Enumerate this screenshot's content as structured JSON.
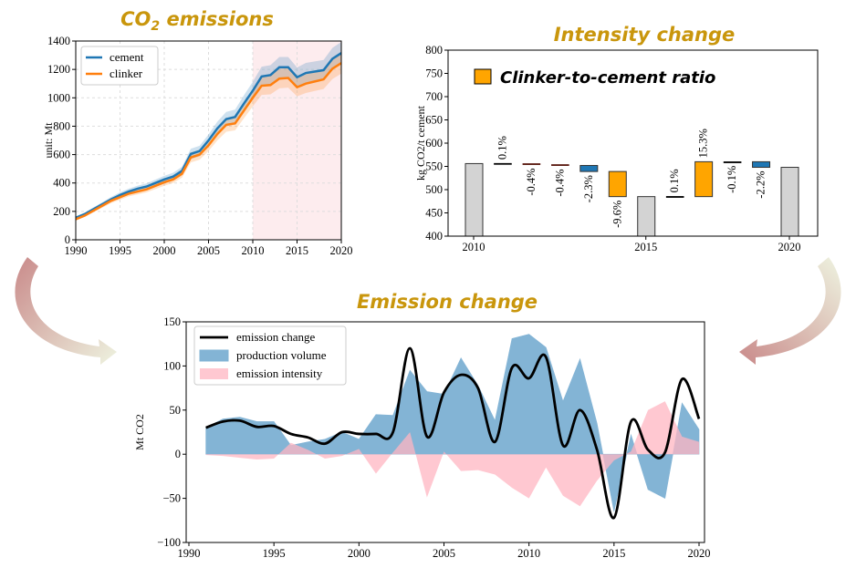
{
  "chart_data": [
    {
      "type": "line",
      "title": "CO2 emissions",
      "ylabel": "unit: Mt",
      "xlim": [
        1990,
        2020
      ],
      "ylim": [
        0,
        1400
      ],
      "xticks": [
        1990,
        1995,
        2000,
        2005,
        2010,
        2015,
        2020
      ],
      "yticks": [
        0,
        200,
        400,
        600,
        800,
        1000,
        1200,
        1400
      ],
      "grid": true,
      "legend_placement": "top-left",
      "highlight_span": [
        2010,
        2020
      ],
      "uncertainty_fraction": 0.06,
      "x": [
        1990,
        1991,
        1992,
        1993,
        1994,
        1995,
        1996,
        1997,
        1998,
        1999,
        2000,
        2001,
        2002,
        2003,
        2004,
        2005,
        2006,
        2007,
        2008,
        2009,
        2010,
        2011,
        2012,
        2013,
        2014,
        2015,
        2016,
        2017,
        2018,
        2019,
        2020
      ],
      "series": [
        {
          "name": "cement",
          "color": "#1f77b4",
          "values": [
            155,
            180,
            215,
            250,
            285,
            315,
            340,
            360,
            375,
            400,
            425,
            445,
            485,
            605,
            625,
            700,
            785,
            850,
            865,
            960,
            1050,
            1150,
            1160,
            1215,
            1215,
            1145,
            1175,
            1185,
            1195,
            1275,
            1315
          ]
        },
        {
          "name": "clinker",
          "color": "#ff7f0e",
          "values": [
            145,
            170,
            205,
            240,
            275,
            300,
            325,
            340,
            355,
            380,
            405,
            425,
            465,
            580,
            600,
            665,
            745,
            810,
            820,
            910,
            1000,
            1085,
            1090,
            1135,
            1140,
            1075,
            1100,
            1115,
            1130,
            1205,
            1245
          ]
        }
      ]
    },
    {
      "type": "bar",
      "subtype": "waterfall",
      "title": "Intensity change",
      "ylabel": "kg CO2/t cement",
      "ylim": [
        400,
        800
      ],
      "yticks": [
        400,
        450,
        500,
        550,
        600,
        650,
        700,
        750,
        800
      ],
      "xtick_labels": [
        {
          "slot": 0,
          "label": "2010"
        },
        {
          "slot": 6,
          "label": "2015"
        },
        {
          "slot": 11,
          "label": "2020"
        }
      ],
      "legend": {
        "label": "Clinker-to-cement ratio",
        "color": "#ffa500"
      },
      "bars": [
        {
          "start": 400,
          "end": 556,
          "kind": "total",
          "color": "#d3d3d3",
          "label": ""
        },
        {
          "start": 556,
          "end": 556.5,
          "kind": "step",
          "color": "#000000",
          "label": "0.1%"
        },
        {
          "start": 556,
          "end": 554,
          "kind": "step",
          "color": "#5a1a10",
          "label": "-0.4%"
        },
        {
          "start": 554,
          "end": 552,
          "kind": "step",
          "color": "#5a1a10",
          "label": "-0.4%"
        },
        {
          "start": 552,
          "end": 539,
          "kind": "step",
          "color": "#1f77b4",
          "label": "-2.3%"
        },
        {
          "start": 539,
          "end": 485,
          "kind": "step",
          "color": "#ffa500",
          "label": "-9.6%"
        },
        {
          "start": 400,
          "end": 485,
          "kind": "total",
          "color": "#d3d3d3",
          "label": ""
        },
        {
          "start": 485,
          "end": 485.5,
          "kind": "step",
          "color": "#000000",
          "label": "0.1%"
        },
        {
          "start": 485,
          "end": 560,
          "kind": "step",
          "color": "#ffa500",
          "label": "15.3%"
        },
        {
          "start": 560,
          "end": 559.5,
          "kind": "step",
          "color": "#000000",
          "label": "-0.1%"
        },
        {
          "start": 560,
          "end": 548,
          "kind": "step",
          "color": "#1f77b4",
          "label": "-2.2%"
        },
        {
          "start": 400,
          "end": 548,
          "kind": "total",
          "color": "#d3d3d3",
          "label": ""
        }
      ]
    },
    {
      "type": "area",
      "title": "Emission change",
      "ylabel": "Mt CO2",
      "xlim": [
        1990,
        2020
      ],
      "ylim": [
        -100,
        150
      ],
      "xticks": [
        1990,
        1995,
        2000,
        2005,
        2010,
        2015,
        2020
      ],
      "yticks": [
        -100,
        -50,
        0,
        50,
        100,
        150
      ],
      "legend_placement": "top-left",
      "x": [
        1991,
        1992,
        1993,
        1994,
        1995,
        1996,
        1997,
        1998,
        1999,
        2000,
        2001,
        2002,
        2003,
        2004,
        2005,
        2006,
        2007,
        2008,
        2009,
        2010,
        2011,
        2012,
        2013,
        2014,
        2015,
        2016,
        2017,
        2018,
        2019,
        2020
      ],
      "series": [
        {
          "name": "emission change",
          "kind": "line",
          "color": "#000000",
          "values": [
            30,
            37,
            38,
            31,
            32,
            23,
            19,
            12,
            25,
            23,
            23,
            25,
            120,
            20,
            70,
            90,
            75,
            14,
            98,
            86,
            110,
            10,
            50,
            5,
            -72,
            37,
            5,
            2,
            85,
            40
          ]
        },
        {
          "name": "production volume",
          "kind": "area",
          "color": "#1f77b4",
          "values": [
            30,
            40,
            42,
            37,
            37,
            10,
            14,
            17,
            25,
            17,
            45,
            44,
            95,
            71,
            68,
            109,
            78,
            38,
            131,
            136,
            121,
            60,
            108,
            35,
            -65,
            22,
            -40,
            -50,
            58,
            28
          ]
        },
        {
          "name": "emission intensity",
          "kind": "area",
          "color": "#ffb6c1",
          "values": [
            -1,
            -2,
            -4,
            -6,
            -5,
            13,
            5,
            -5,
            -2,
            6,
            -22,
            2,
            25,
            -49,
            3,
            -19,
            -18,
            -23,
            -38,
            -50,
            -15,
            -47,
            -59,
            -30,
            -7,
            3,
            50,
            60,
            20,
            14
          ]
        }
      ]
    }
  ]
}
